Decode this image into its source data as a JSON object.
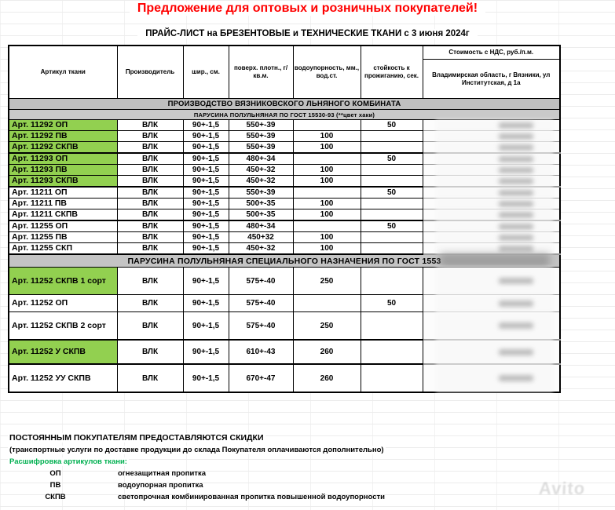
{
  "page": {
    "title": "Предложение для оптовых и розничных покупателей!",
    "subtitle": "ПРАЙС-ЛИСТ на БРЕЗЕНТОВЫЕ и ТЕХНИЧЕСКИЕ ТКАНИ с 3 июня 2024г"
  },
  "colors": {
    "title_red": "#FF0000",
    "highlight_green": "#92D050",
    "section_bar_gray": "#C0C0C0",
    "legend_green": "#00B050"
  },
  "table": {
    "headers": {
      "article": "Артикул ткани",
      "manufacturer": "Производитель",
      "width": "шир., см.",
      "density": "поверх. плотн., г/кв.м.",
      "water": "водоупорность, мм., вод.ст.",
      "burn": "стойкость к прожиганию, сек.",
      "price_title": "Стоимость с НДС, руб./п.м.",
      "price_location": "Владимирская область, г Вязники, ул Институтская, д 1а"
    },
    "company_header": "ПРОИЗВОДСТВО ВЯЗНИКОВСКОГО ЛЬНЯНОГО КОМБИНАТА",
    "price_hidden_note": "цены скрыты (размыты)",
    "sections": [
      {
        "title": "ПАРУСИНА ПОЛУЛЬНЯНАЯ ПО ГОСТ 15530-93 (**цвет хаки)",
        "rows": [
          {
            "article": "Арт. 11292 ОП",
            "manufacturer": "ВЛК",
            "width": "90+-1,5",
            "density": "550+-39",
            "water": "",
            "burn": "50",
            "highlight": true
          },
          {
            "article": "Арт. 11292 ПВ",
            "manufacturer": "ВЛК",
            "width": "90+-1,5",
            "density": "550+-39",
            "water": "100",
            "burn": "",
            "highlight": true
          },
          {
            "article": "Арт. 11292 СКПВ",
            "manufacturer": "ВЛК",
            "width": "90+-1,5",
            "density": "550+-39",
            "water": "100",
            "burn": "",
            "highlight": true
          },
          {
            "article": "Арт. 11293 ОП",
            "manufacturer": "ВЛК",
            "width": "90+-1,5",
            "density": "480+-34",
            "water": "",
            "burn": "50",
            "highlight": true
          },
          {
            "article": "Арт. 11293 ПВ",
            "manufacturer": "ВЛК",
            "width": "90+-1,5",
            "density": "450+-32",
            "water": "100",
            "burn": "",
            "highlight": true
          },
          {
            "article": "Арт. 11293 СКПВ",
            "manufacturer": "ВЛК",
            "width": "90+-1,5",
            "density": "450+-32",
            "water": "100",
            "burn": "",
            "highlight": true
          },
          {
            "article": "Арт. 11211 ОП",
            "manufacturer": "ВЛК",
            "width": "90+-1,5",
            "density": "550+-39",
            "water": "",
            "burn": "50",
            "highlight": false
          },
          {
            "article": "Арт. 11211 ПВ",
            "manufacturer": "ВЛК",
            "width": "90+-1,5",
            "density": "500+-35",
            "water": "100",
            "burn": "",
            "highlight": false
          },
          {
            "article": "Арт. 11211 СКПВ",
            "manufacturer": "ВЛК",
            "width": "90+-1,5",
            "density": "500+-35",
            "water": "100",
            "burn": "",
            "highlight": false
          },
          {
            "article": "Арт. 11255 ОП",
            "manufacturer": "ВЛК",
            "width": "90+-1,5",
            "density": "480+-34",
            "water": "",
            "burn": "50",
            "highlight": false
          },
          {
            "article": "Арт. 11255 ПВ",
            "manufacturer": "ВЛК",
            "width": "90+-1,5",
            "density": "450+32",
            "water": "100",
            "burn": "",
            "highlight": false
          },
          {
            "article": "Арт. 11255 СКП",
            "manufacturer": "ВЛК",
            "width": "90+-1,5",
            "density": "450+-32",
            "water": "100",
            "burn": "",
            "highlight": false
          }
        ]
      },
      {
        "title": "ПАРУСИНА  ПОЛУЛЬНЯНАЯ СПЕЦИАЛЬНОГО НАЗНАЧЕНИЯ ПО ГОСТ 1553",
        "title_blurred_tail": true,
        "rows": [
          {
            "article": "Арт. 11252  СКПВ 1 сорт",
            "manufacturer": "ВЛК",
            "width": "90+-1,5",
            "density": "575+-40",
            "water": "250",
            "burn": "",
            "highlight": true
          },
          {
            "article": "Арт. 11252  ОП",
            "manufacturer": "ВЛК",
            "width": "90+-1,5",
            "density": "575+-40",
            "water": "",
            "burn": "50",
            "highlight": false
          },
          {
            "article": "Арт. 11252 СКПВ 2 сорт",
            "manufacturer": "ВЛК",
            "width": "90+-1,5",
            "density": "575+-40",
            "water": "250",
            "burn": "",
            "highlight": false
          },
          {
            "article": "Арт. 11252 У СКПВ",
            "manufacturer": "ВЛК",
            "width": "90+-1,5",
            "density": "610+-43",
            "water": "260",
            "burn": "",
            "highlight": true
          },
          {
            "article": "Арт. 11252 УУ СКПВ",
            "manufacturer": "ВЛК",
            "width": "90+-1,5",
            "density": "670+-47",
            "water": "260",
            "burn": "",
            "highlight": false
          }
        ]
      }
    ]
  },
  "footer": {
    "discount": "ПОСТОЯННЫМ  ПОКУПАТЕЛЯМ ПРЕДОСТАВЛЯЮТСЯ СКИДКИ",
    "transport": "(транспортные услуги по доставке продукции до склада Покупателя оплачиваются дополнительно)",
    "legend_title": "Расшифровка артикулов ткани:",
    "legend": [
      {
        "code": "ОП",
        "desc": "огнезащитная пропитка"
      },
      {
        "code": "ПВ",
        "desc": "водоупорная пропитка"
      },
      {
        "code": "СКПВ",
        "desc": "светопрочная комбинированная пропитка повышенной водоупорности"
      }
    ]
  },
  "watermark": "Avito"
}
